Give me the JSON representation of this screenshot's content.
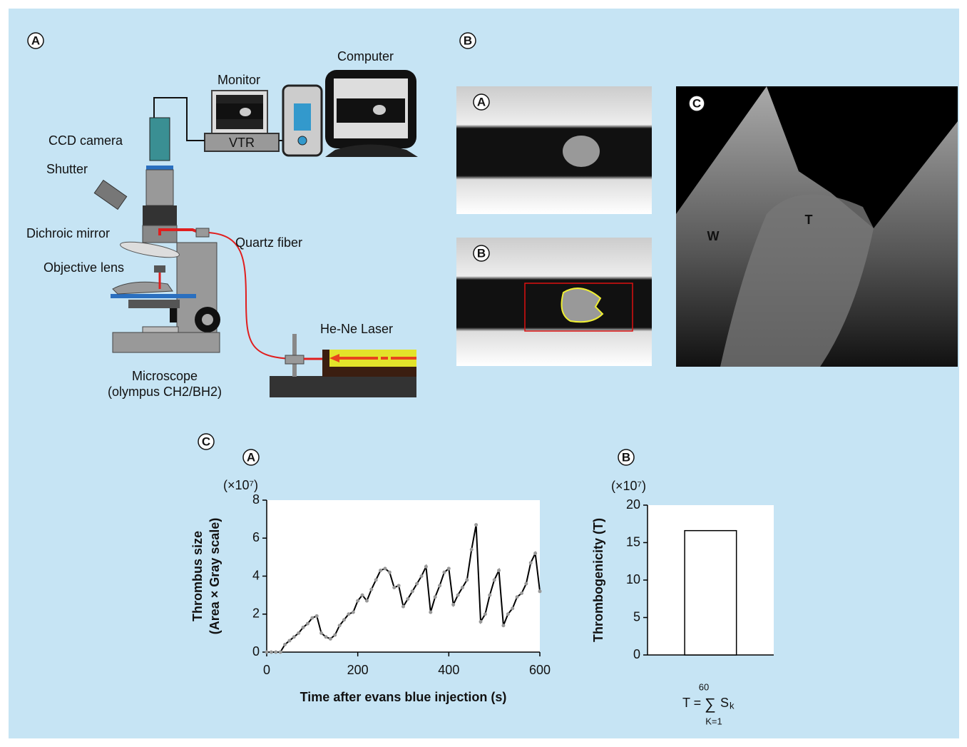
{
  "panel_labels": {
    "main_a": "A",
    "main_b": "B",
    "main_c": "C",
    "b_a": "A",
    "b_b": "B",
    "b_c": "C",
    "c_a": "A",
    "c_b": "B"
  },
  "diagram": {
    "monitor": "Monitor",
    "computer": "Computer",
    "vtr": "VTR",
    "ccd_camera": "CCD camera",
    "shutter": "Shutter",
    "dichroic_mirror": "Dichroic mirror",
    "quartz_fiber": "Quartz fiber",
    "objective_lens": "Objective lens",
    "laser": "He-Ne Laser",
    "microscope": "Microscope",
    "microscope_model": "(olympus CH2/BH2)"
  },
  "images": {
    "wall_label": "W",
    "thrombus_label": "T"
  },
  "chart_data": [
    {
      "type": "line",
      "y_unit": "(×10⁷)",
      "y_label": [
        "Thrombus size",
        "(Area × Gray scale)"
      ],
      "x_label": "Time after evans blue injection (s)",
      "x": [
        0,
        10,
        20,
        30,
        40,
        50,
        60,
        70,
        80,
        90,
        100,
        110,
        120,
        130,
        140,
        150,
        160,
        170,
        180,
        190,
        200,
        210,
        220,
        230,
        240,
        250,
        260,
        270,
        280,
        290,
        300,
        310,
        320,
        330,
        340,
        350,
        360,
        370,
        380,
        390,
        400,
        410,
        420,
        430,
        440,
        450,
        460,
        470,
        480,
        490,
        500,
        510,
        520,
        530,
        540,
        550,
        560,
        570,
        580,
        590,
        600
      ],
      "values": [
        0,
        0,
        0,
        0,
        0.4,
        0.6,
        0.8,
        1.0,
        1.3,
        1.5,
        1.8,
        1.9,
        1.0,
        0.8,
        0.7,
        0.9,
        1.4,
        1.7,
        2.0,
        2.1,
        2.7,
        3.0,
        2.7,
        3.3,
        3.8,
        4.3,
        4.4,
        4.2,
        3.4,
        3.5,
        2.4,
        2.8,
        3.2,
        3.6,
        4.0,
        4.5,
        2.1,
        2.9,
        3.5,
        4.2,
        4.4,
        2.5,
        3.0,
        3.4,
        3.8,
        5.4,
        6.7,
        1.6,
        2.0,
        3.0,
        3.8,
        4.3,
        1.4,
        2.0,
        2.3,
        2.9,
        3.1,
        3.6,
        4.7,
        5.2,
        3.2
      ],
      "color": "#000000",
      "marker_color": "#999999",
      "xlim": [
        0,
        600
      ],
      "xticks": [
        0,
        200,
        400,
        600
      ],
      "ylim": [
        0,
        8
      ],
      "yticks": [
        0,
        2,
        4,
        6,
        8
      ]
    },
    {
      "type": "bar",
      "y_unit": "(×10⁷)",
      "y_label": "Thrombogenicity (T)",
      "categories": [
        null
      ],
      "values": [
        16.6
      ],
      "color": "#ffffff",
      "ylim": [
        0,
        20
      ],
      "yticks": [
        0,
        5,
        10,
        15,
        20
      ],
      "formula": {
        "lhs": "T =",
        "sum": "∑",
        "term": "S",
        "sub": "k",
        "upper": "60",
        "lower": "K=1"
      }
    }
  ]
}
